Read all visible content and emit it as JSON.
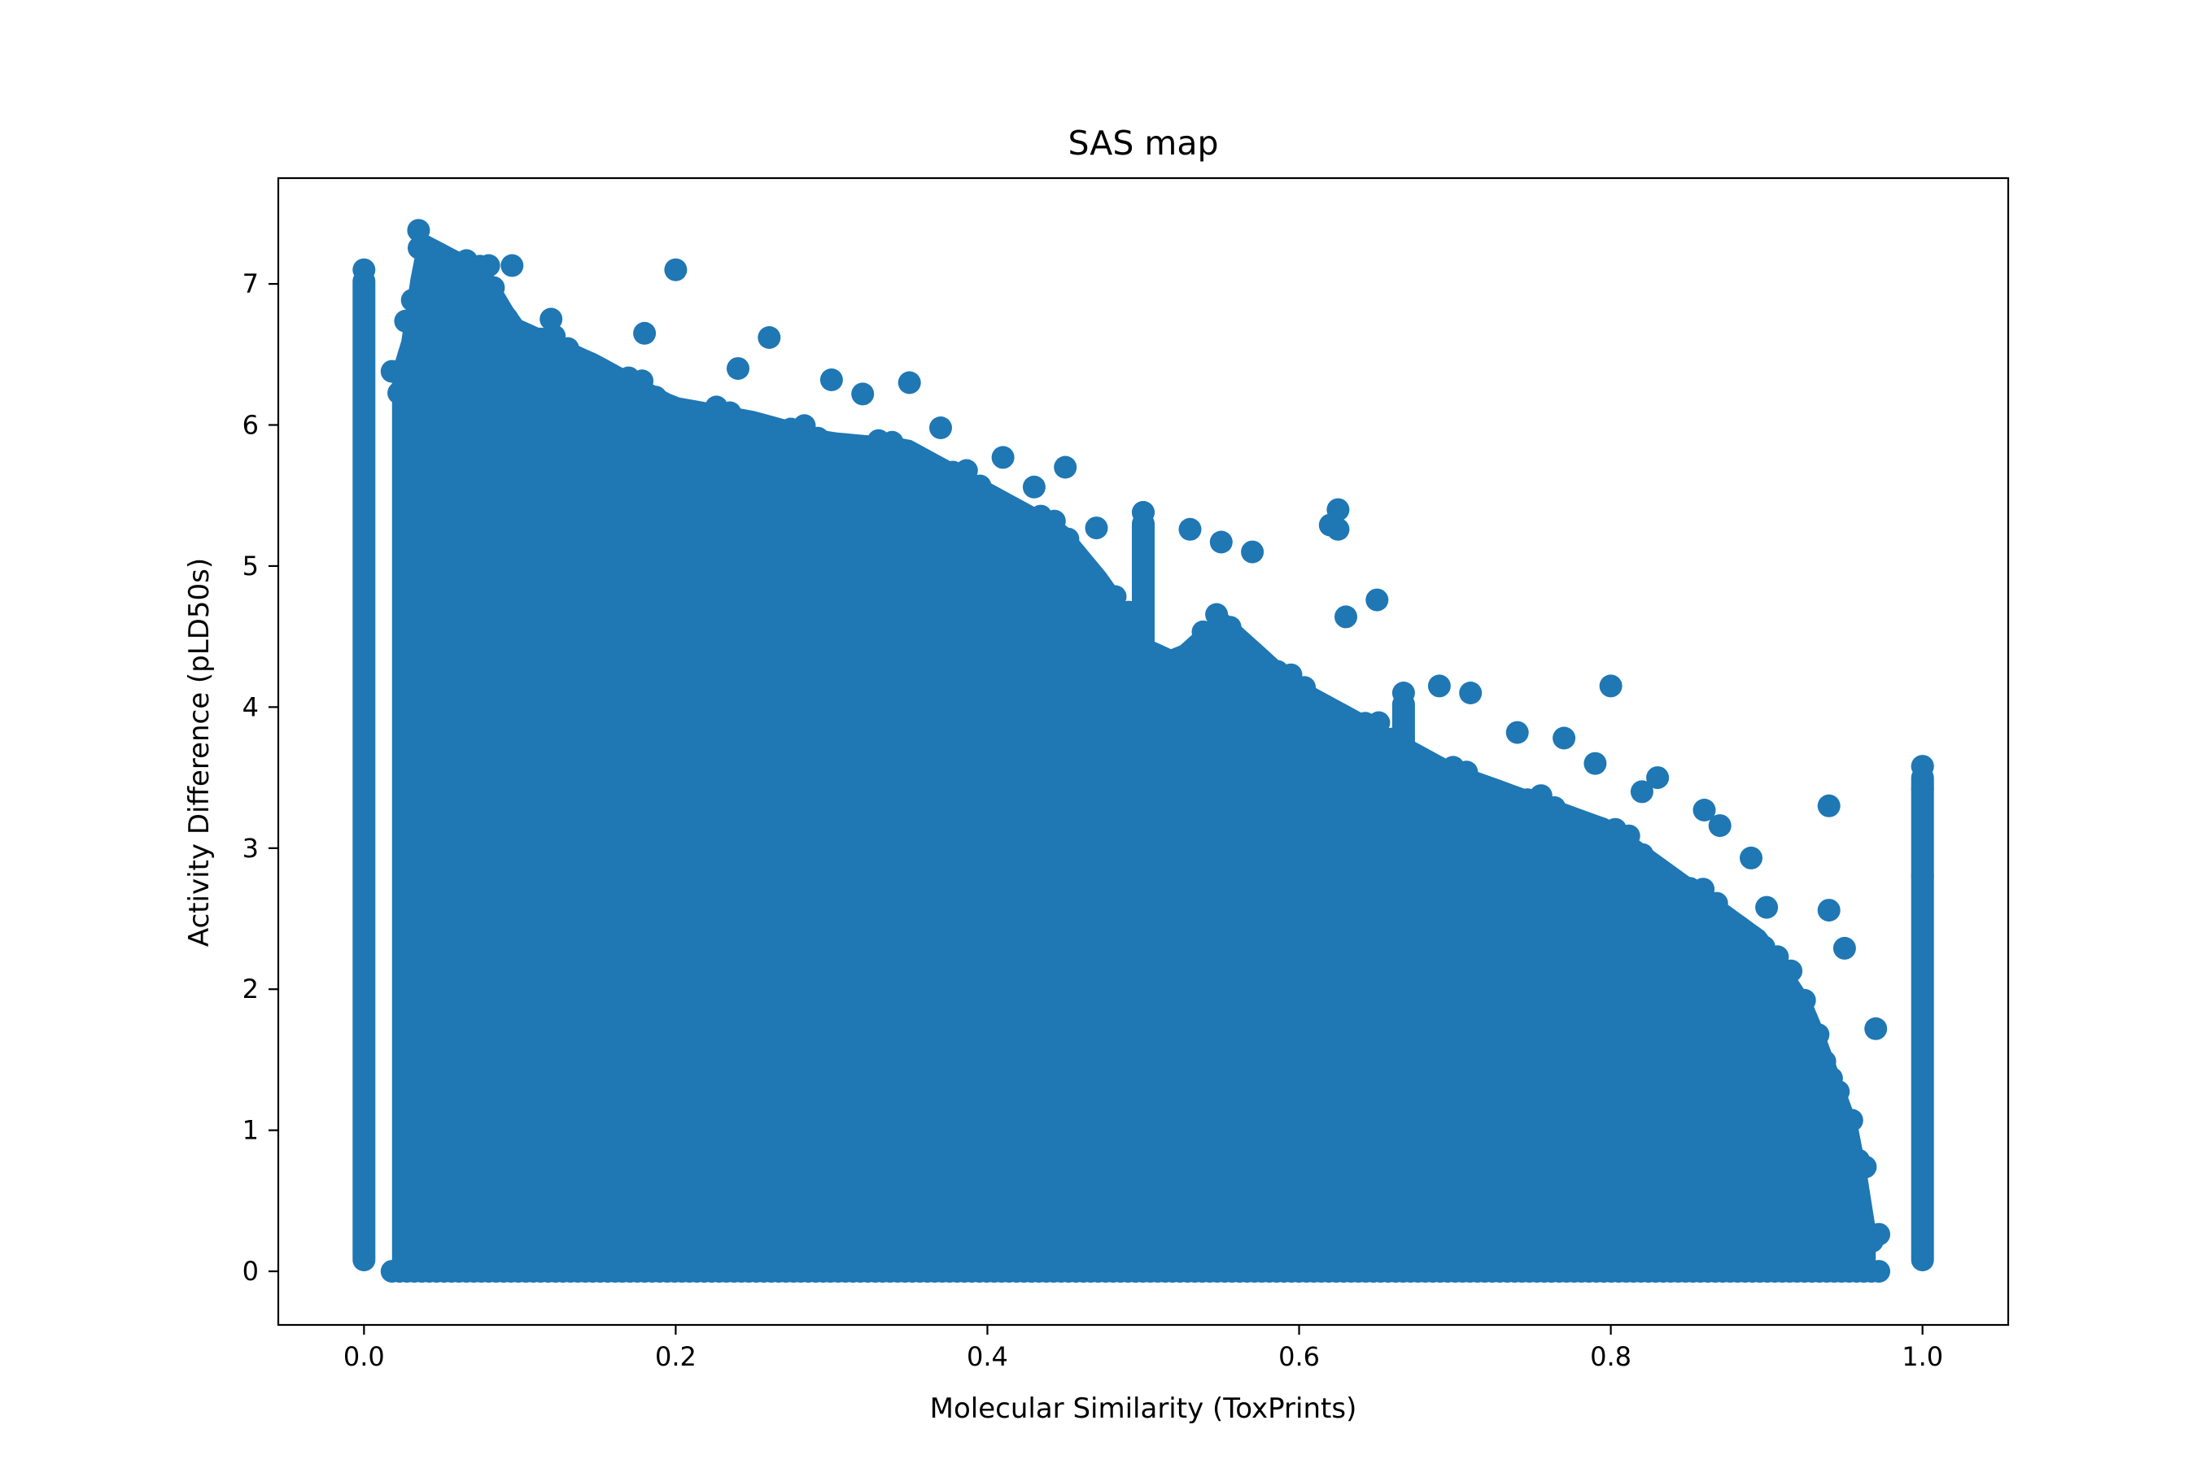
{
  "chart_data": {
    "type": "scatter",
    "title": "SAS map",
    "xlabel": "Molecular Similarity (ToxPrints)",
    "ylabel": "Activity Difference (pLD50s)",
    "xlim": [
      -0.055,
      1.055
    ],
    "ylim": [
      -0.38,
      7.75
    ],
    "xticks": [
      0.0,
      0.2,
      0.4,
      0.6,
      0.8,
      1.0
    ],
    "xtick_labels": [
      "0.0",
      "0.2",
      "0.4",
      "0.6",
      "0.8",
      "1.0"
    ],
    "yticks": [
      0,
      1,
      2,
      3,
      4,
      5,
      6,
      7
    ],
    "ytick_labels": [
      "0",
      "1",
      "2",
      "3",
      "4",
      "5",
      "6",
      "7"
    ],
    "grid": false,
    "legend": "none",
    "color": "#1f77b4",
    "envelope": [
      [
        0.0,
        7.1
      ],
      [
        0.02,
        6.3
      ],
      [
        0.03,
        7.05
      ],
      [
        0.035,
        7.38
      ],
      [
        0.08,
        7.12
      ],
      [
        0.1,
        6.75
      ],
      [
        0.15,
        6.5
      ],
      [
        0.2,
        6.2
      ],
      [
        0.25,
        6.1
      ],
      [
        0.3,
        5.95
      ],
      [
        0.35,
        5.9
      ],
      [
        0.4,
        5.6
      ],
      [
        0.45,
        5.3
      ],
      [
        0.48,
        4.9
      ],
      [
        0.5,
        4.5
      ],
      [
        0.52,
        4.4
      ],
      [
        0.55,
        4.7
      ],
      [
        0.6,
        4.2
      ],
      [
        0.65,
        3.9
      ],
      [
        0.7,
        3.6
      ],
      [
        0.75,
        3.4
      ],
      [
        0.8,
        3.2
      ],
      [
        0.85,
        2.8
      ],
      [
        0.9,
        2.4
      ],
      [
        0.93,
        1.9
      ],
      [
        0.96,
        1.0
      ],
      [
        0.97,
        0.3
      ]
    ],
    "columns": [
      {
        "x": 0.0,
        "ymax": 7.1
      },
      {
        "x": 0.5,
        "ymax": 5.38
      },
      {
        "x": 0.667,
        "ymax": 4.1
      },
      {
        "x": 1.0,
        "ymax": 3.58
      }
    ],
    "outliers": {
      "x": [
        0.035,
        0.045,
        0.08,
        0.095,
        0.12,
        0.18,
        0.2,
        0.24,
        0.26,
        0.3,
        0.32,
        0.35,
        0.37,
        0.41,
        0.43,
        0.45,
        0.47,
        0.5,
        0.53,
        0.55,
        0.57,
        0.62,
        0.625,
        0.625,
        0.63,
        0.65,
        0.69,
        0.71,
        0.74,
        0.77,
        0.79,
        0.8,
        0.82,
        0.83,
        0.86,
        0.87,
        0.89,
        0.9,
        0.94,
        0.94,
        0.95,
        0.97,
        1.0,
        1.0,
        1.0
      ],
      "y": [
        7.38,
        7.08,
        7.13,
        7.13,
        6.75,
        6.65,
        7.1,
        6.4,
        6.62,
        6.32,
        6.22,
        6.3,
        5.98,
        5.77,
        5.56,
        5.7,
        5.27,
        5.38,
        5.26,
        5.17,
        5.1,
        5.29,
        5.4,
        5.26,
        4.64,
        4.76,
        4.15,
        4.1,
        3.82,
        3.78,
        3.6,
        4.15,
        3.4,
        3.5,
        3.27,
        3.16,
        2.93,
        2.58,
        3.3,
        2.56,
        2.29,
        1.72,
        3.58,
        3.42,
        2.8
      ]
    }
  }
}
